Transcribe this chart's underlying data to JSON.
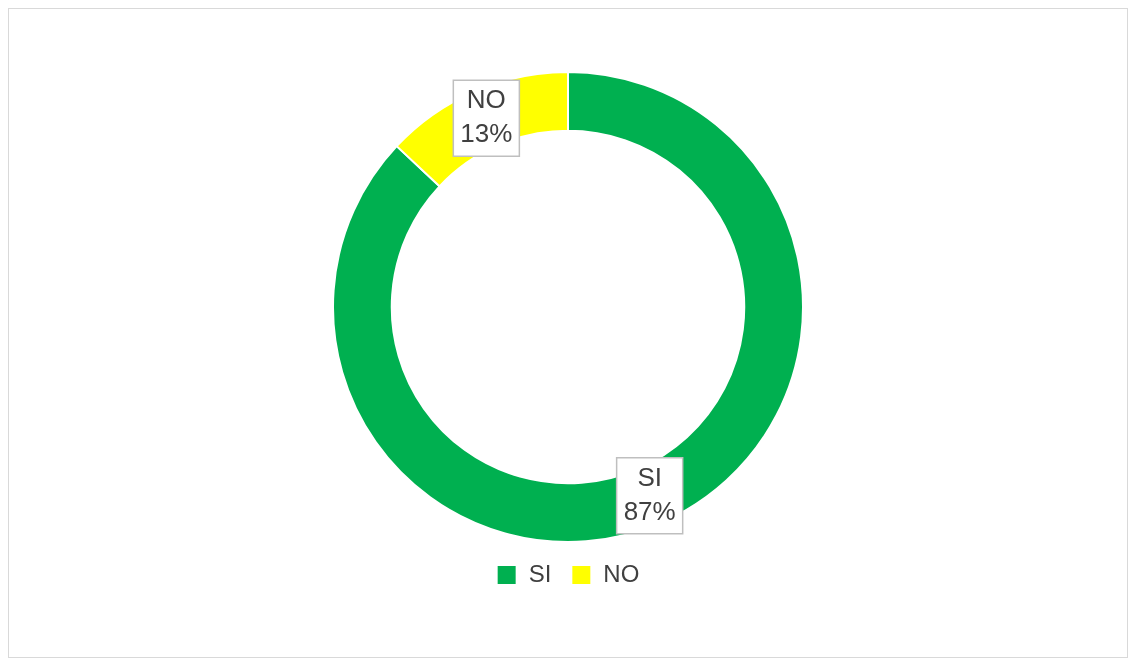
{
  "chart_data": {
    "type": "donut",
    "categories": [
      "SI",
      "NO"
    ],
    "values": [
      87,
      13
    ],
    "colors": [
      "#00b050",
      "#ffff00"
    ],
    "value_labels": [
      "87%",
      "13%"
    ],
    "legend": "bottom"
  }
}
